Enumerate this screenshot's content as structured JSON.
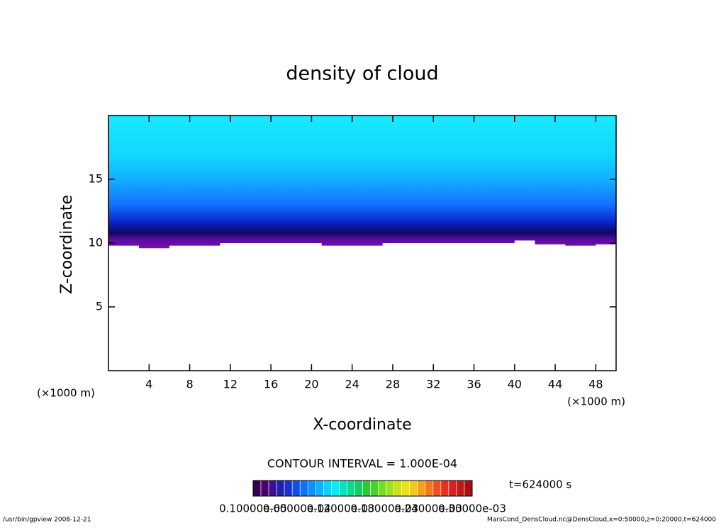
{
  "chart_data": {
    "type": "contour",
    "title": "density of cloud",
    "x_label": "X-coordinate",
    "y_label": "Z-coordinate",
    "x_unit_left": "(×1000 m)",
    "x_unit_right": "(×1000 m)",
    "xlim": [
      0,
      50
    ],
    "ylim": [
      0,
      20
    ],
    "xticks": [
      4,
      8,
      12,
      16,
      20,
      24,
      28,
      32,
      36,
      40,
      44,
      48
    ],
    "yticks": [
      5,
      10,
      15
    ],
    "cloud_base": {
      "x": [
        0,
        3,
        3,
        6,
        6,
        11,
        11,
        21,
        21,
        27,
        27,
        40,
        40,
        42,
        42,
        45,
        45,
        48,
        48,
        50
      ],
      "z": [
        9.8,
        9.8,
        9.6,
        9.6,
        9.8,
        9.8,
        10.0,
        10.0,
        9.8,
        9.8,
        10.0,
        10.0,
        10.2,
        10.2,
        9.9,
        9.9,
        9.8,
        9.8,
        9.9,
        9.9
      ]
    },
    "field_gradient": [
      {
        "z": 9.6,
        "color": "#7a10b0"
      },
      {
        "z": 10.3,
        "color": "#5a0aa0"
      },
      {
        "z": 10.8,
        "color": "#10085e"
      },
      {
        "z": 11.6,
        "color": "#0a22c8"
      },
      {
        "z": 13,
        "color": "#1470ff"
      },
      {
        "z": 15,
        "color": "#12b0ff"
      },
      {
        "z": 17,
        "color": "#12d8ff"
      },
      {
        "z": 20,
        "color": "#1ae8ff"
      }
    ],
    "contour_interval": "CONTOUR INTERVAL = 1.000E-04",
    "time_label": "t=624000 s",
    "colorbar": {
      "colors": [
        "#3a0050",
        "#4a0070",
        "#3a1090",
        "#2020b0",
        "#1830d0",
        "#1050e8",
        "#1070ff",
        "#1090ff",
        "#10b0ff",
        "#10d0ff",
        "#10e8f0",
        "#10e0c0",
        "#10d890",
        "#10d060",
        "#20d030",
        "#40d820",
        "#70e020",
        "#a0e020",
        "#c8e020",
        "#e8e020",
        "#f0c820",
        "#f0a020",
        "#f07820",
        "#f05020",
        "#e83020",
        "#d82020",
        "#c01818",
        "#a81010"
      ],
      "labels": [
        "0.10000e-05",
        "0.60000e-04",
        "0.12000e-03",
        "0.18000e-03",
        "0.24000e-03",
        "0.30000e-03"
      ]
    },
    "footer_left": "/usr/bin/gpview  2008-12-21",
    "footer_right": "MarsCond_DensCloud.nc@DensCloud,x=0:50000,z=0:20000,t=624000"
  }
}
